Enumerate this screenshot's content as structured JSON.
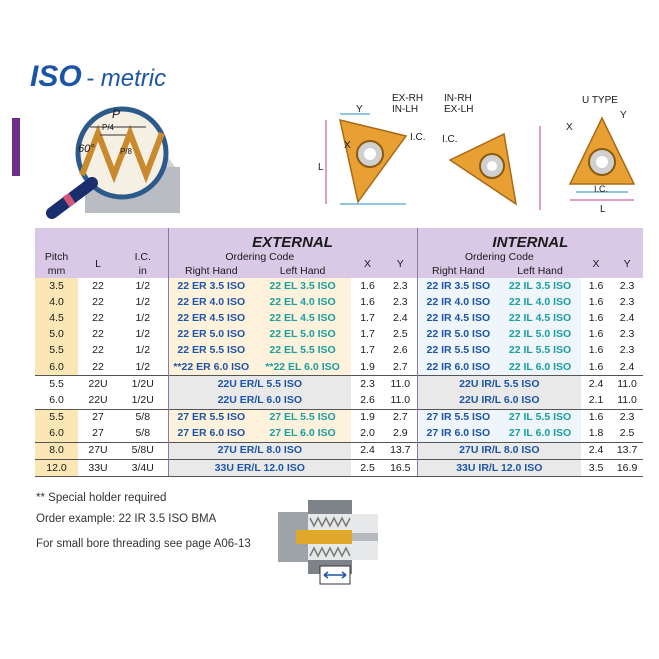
{
  "title": {
    "iso": "ISO",
    "suffix": "- metric"
  },
  "magnifier": {
    "labels": {
      "p": "P",
      "p4": "P/4",
      "p8": "P/8",
      "angle": "60°"
    }
  },
  "insert_diagrams": {
    "ex_rh_in_lh": {
      "line1": "EX-RH",
      "line2": "IN-LH",
      "y": "Y",
      "x": "X",
      "ic": "I.C.",
      "l": "L"
    },
    "in_rh_ex_lh": {
      "line1": "IN-RH",
      "line2": "EX-LH",
      "ic": "I.C."
    },
    "u_type": {
      "title": "U TYPE",
      "x": "X",
      "y": "Y",
      "ic": "I.C.",
      "l": "L"
    }
  },
  "table": {
    "headers": {
      "pitch": "Pitch",
      "pitch_unit": "mm",
      "l": "L",
      "ic": "I.C.",
      "ic_unit": "in",
      "external": "EXTERNAL",
      "internal": "INTERNAL",
      "ordering_code": "Ordering Code",
      "right_hand": "Right Hand",
      "left_hand": "Left Hand",
      "x": "X",
      "y": "Y"
    },
    "rows": [
      {
        "pitch": "3.5",
        "l": "22",
        "ic": "1/2",
        "ext_rh": "22 ER 3.5 ISO",
        "ext_lh": "22 EL 3.5 ISO",
        "ext_x": "1.6",
        "ext_y": "2.3",
        "int_rh": "22 IR 3.5 ISO",
        "int_lh": "22 IL 3.5 ISO",
        "int_x": "1.6",
        "int_y": "2.3"
      },
      {
        "pitch": "4.0",
        "l": "22",
        "ic": "1/2",
        "ext_rh": "22 ER 4.0 ISO",
        "ext_lh": "22 EL 4.0 ISO",
        "ext_x": "1.6",
        "ext_y": "2.3",
        "int_rh": "22 IR 4.0 ISO",
        "int_lh": "22 IL 4.0 ISO",
        "int_x": "1.6",
        "int_y": "2.3"
      },
      {
        "pitch": "4.5",
        "l": "22",
        "ic": "1/2",
        "ext_rh": "22 ER 4.5 ISO",
        "ext_lh": "22 EL 4.5 ISO",
        "ext_x": "1.7",
        "ext_y": "2.4",
        "int_rh": "22 IR 4.5 ISO",
        "int_lh": "22 IL 4.5 ISO",
        "int_x": "1.6",
        "int_y": "2.4"
      },
      {
        "pitch": "5.0",
        "l": "22",
        "ic": "1/2",
        "ext_rh": "22 ER 5.0 ISO",
        "ext_lh": "22 EL 5.0 ISO",
        "ext_x": "1.7",
        "ext_y": "2.5",
        "int_rh": "22 IR 5.0 ISO",
        "int_lh": "22 IL 5.0 ISO",
        "int_x": "1.6",
        "int_y": "2.3"
      },
      {
        "pitch": "5.5",
        "l": "22",
        "ic": "1/2",
        "ext_rh": "22 ER 5.5 ISO",
        "ext_lh": "22 EL 5.5 ISO",
        "ext_x": "1.7",
        "ext_y": "2.6",
        "int_rh": "22 IR 5.5 ISO",
        "int_lh": "22 IL 5.5 ISO",
        "int_x": "1.6",
        "int_y": "2.3"
      },
      {
        "pitch": "6.0",
        "l": "22",
        "ic": "1/2",
        "ext_rh": "**22 ER 6.0 ISO",
        "ext_lh": "**22 EL 6.0 ISO",
        "ext_x": "1.9",
        "ext_y": "2.7",
        "int_rh": "22 IR 6.0 ISO",
        "int_lh": "22 IL 6.0 ISO",
        "int_x": "1.6",
        "int_y": "2.4"
      },
      {
        "pitch": "5.5",
        "l": "22U",
        "ic": "1/2U",
        "ext_merged": "22U ER/L 5.5 ISO",
        "ext_x": "2.3",
        "ext_y": "11.0",
        "int_merged": "22U IR/L 5.5 ISO",
        "int_x": "2.4",
        "int_y": "11.0"
      },
      {
        "pitch": "6.0",
        "l": "22U",
        "ic": "1/2U",
        "ext_merged": "22U ER/L 6.0 ISO",
        "ext_x": "2.6",
        "ext_y": "11.0",
        "int_merged": "22U IR/L 6.0 ISO",
        "int_x": "2.1",
        "int_y": "11.0"
      },
      {
        "pitch": "5.5",
        "l": "27",
        "ic": "5/8",
        "ext_rh": "27 ER 5.5 ISO",
        "ext_lh": "27 EL 5.5 ISO",
        "ext_x": "1.9",
        "ext_y": "2.7",
        "int_rh": "27 IR 5.5 ISO",
        "int_lh": "27 IL 5.5 ISO",
        "int_x": "1.6",
        "int_y": "2.3"
      },
      {
        "pitch": "6.0",
        "l": "27",
        "ic": "5/8",
        "ext_rh": "27 ER 6.0 ISO",
        "ext_lh": "27 EL 6.0 ISO",
        "ext_x": "2.0",
        "ext_y": "2.9",
        "int_rh": "27 IR 6.0 ISO",
        "int_lh": "27 IL 6.0 ISO",
        "int_x": "1.8",
        "int_y": "2.5"
      },
      {
        "pitch": "8.0",
        "l": "27U",
        "ic": "5/8U",
        "ext_merged": "27U ER/L  8.0 ISO",
        "ext_x": "2.4",
        "ext_y": "13.7",
        "int_merged": "27U IR/L  8.0 ISO",
        "int_x": "2.4",
        "int_y": "13.7"
      },
      {
        "pitch": "12.0",
        "l": "33U",
        "ic": "3/4U",
        "ext_merged": "33U ER/L 12.0 ISO",
        "ext_x": "2.5",
        "ext_y": "16.5",
        "int_merged": "33U IR/L 12.0 ISO",
        "int_x": "3.5",
        "int_y": "16.9"
      }
    ]
  },
  "notes": {
    "special_holder": "** Special holder required",
    "order_example": "Order example: 22 IR 3.5 ISO BMA",
    "small_bore": "For small bore threading see page A06-13"
  },
  "colors": {
    "brand_blue": "#1d55a6",
    "teal": "#1a9ea0",
    "purple_header": "#d9c8e6",
    "insert_gold": "#e8a033",
    "accent_purple": "#6b2f8c"
  }
}
